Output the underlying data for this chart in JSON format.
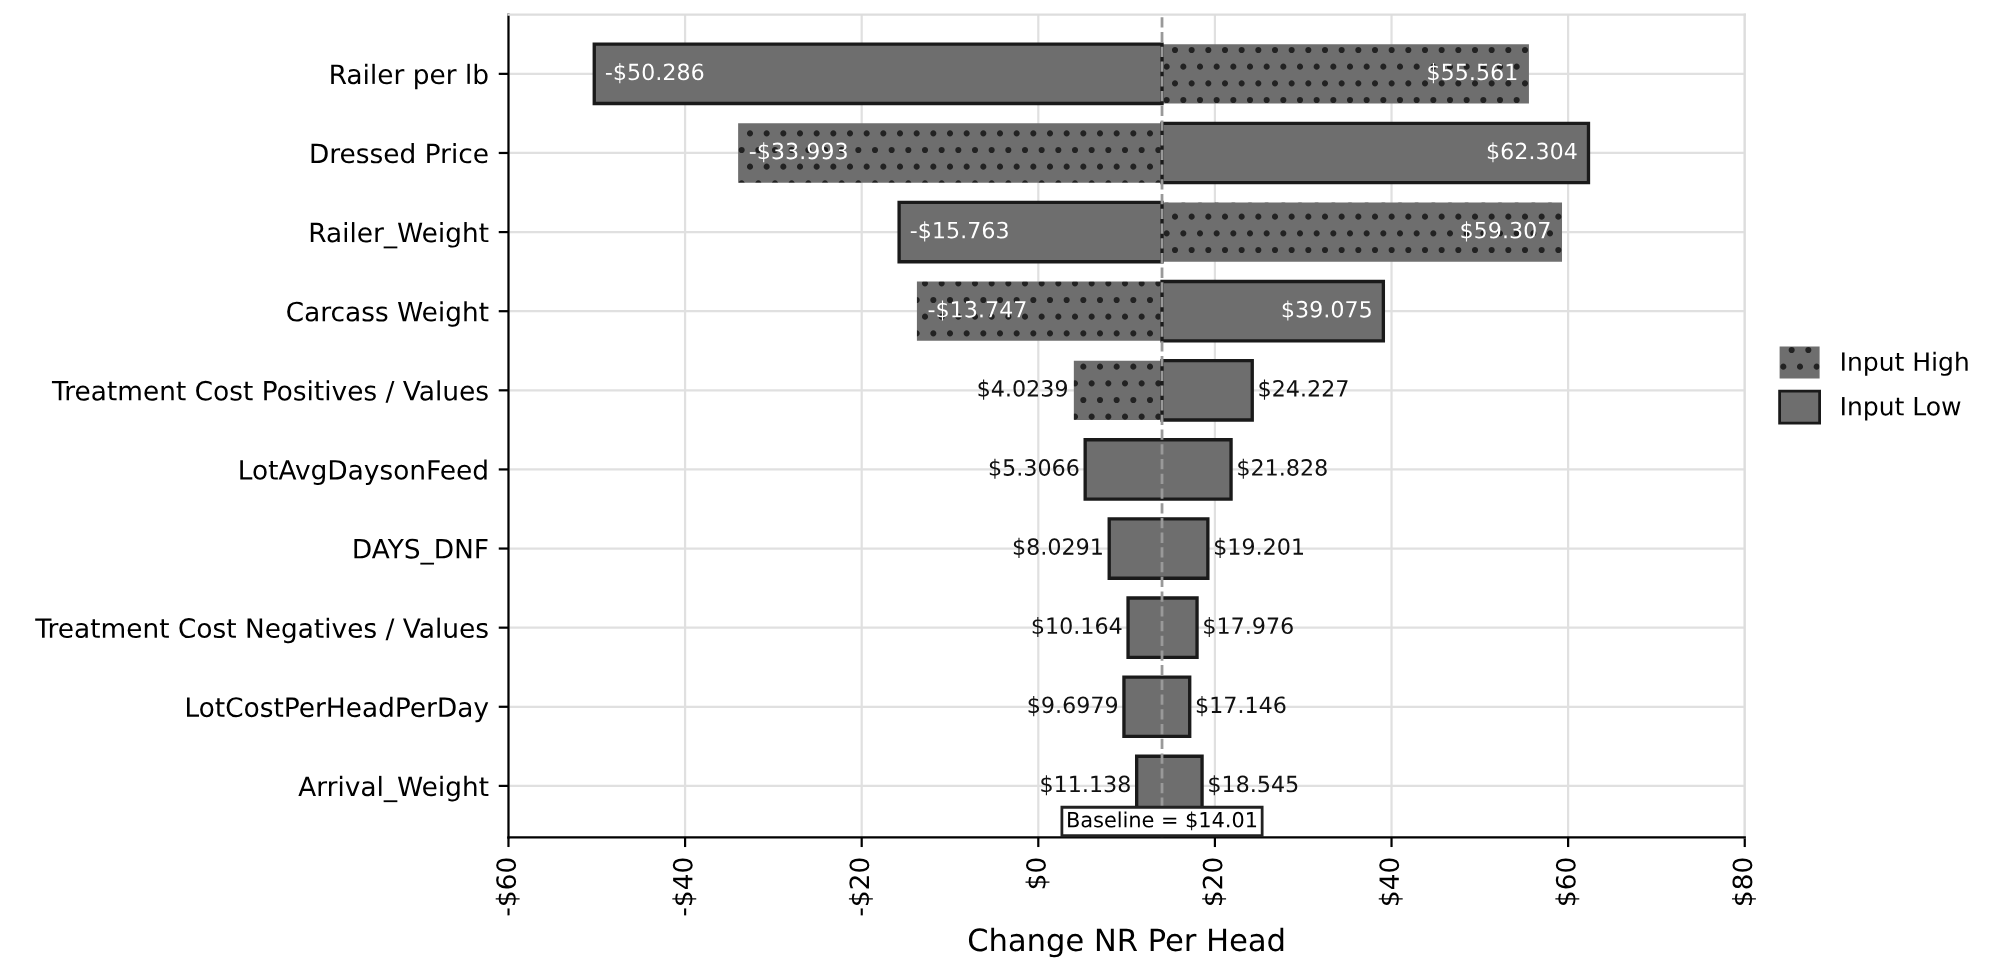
{
  "chart_data": {
    "type": "bar",
    "orientation": "horizontal",
    "xlabel": "Change NR Per Head",
    "categories": [
      "Railer per lb",
      "Dressed Price",
      "Railer_Weight",
      "Carcass Weight",
      "Treatment Cost Positives / Values",
      "LotAvgDaysonFeed",
      "DAYS_DNF",
      "Treatment Cost Negatives / Values",
      "LotCostPerHeadPerDay",
      "Arrival_Weight"
    ],
    "series": [
      {
        "name": "Input High",
        "color": "#6e6e6e",
        "base": [
          14.01,
          14.01,
          14.01,
          14.01,
          14.01,
          null,
          null,
          null,
          null,
          null
        ],
        "values": [
          41.551,
          -48.003,
          45.297,
          -27.757,
          -9.9861,
          null,
          null,
          null,
          null,
          null
        ]
      },
      {
        "name": "Input Low",
        "color": "#6e6e6e",
        "base": [
          14.01,
          14.01,
          14.01,
          14.01,
          14.01,
          5.3066,
          8.0291,
          10.164,
          9.6979,
          11.138
        ],
        "values": [
          -64.296,
          48.294,
          -29.773,
          25.065,
          10.217,
          16.5214,
          11.1719,
          7.812,
          7.4481,
          7.407
        ]
      }
    ],
    "annotations": [
      {
        "text": "-$50.286",
        "x": -50.286,
        "y": "Railer per lb"
      },
      {
        "text": "$55.561",
        "x": 55.561,
        "y": "Railer per lb"
      },
      {
        "text": "-$33.993",
        "x": -33.993,
        "y": "Dressed Price"
      },
      {
        "text": "$62.304",
        "x": 62.304,
        "y": "Dressed Price"
      },
      {
        "text": "-$15.763",
        "x": -15.763,
        "y": "Railer_Weight"
      },
      {
        "text": "$59.307",
        "x": 59.307,
        "y": "Railer_Weight"
      },
      {
        "text": "-$13.747",
        "x": -13.747,
        "y": "Carcass Weight"
      },
      {
        "text": "$39.075",
        "x": 39.075,
        "y": "Carcass Weight"
      },
      {
        "text": "$4.0239",
        "x": 4.0239,
        "y": "Treatment Cost Positives / Values"
      },
      {
        "text": "$24.227",
        "x": 24.227,
        "y": "Treatment Cost Positives / Values"
      },
      {
        "text": "$5.3066",
        "x": 5.3066,
        "y": "LotAvgDaysonFeed"
      },
      {
        "text": "$21.828",
        "x": 21.828,
        "y": "LotAvgDaysonFeed"
      },
      {
        "text": "$8.0291",
        "x": 8.0291,
        "y": "DAYS_DNF"
      },
      {
        "text": "$19.201",
        "x": 19.201,
        "y": "DAYS_DNF"
      },
      {
        "text": "$10.164",
        "x": 10.164,
        "y": "Treatment Cost Negatives / Values"
      },
      {
        "text": "$17.976",
        "x": 17.976,
        "y": "Treatment Cost Negatives / Values"
      },
      {
        "text": "$9.6979",
        "x": 9.6979,
        "y": "LotCostPerHeadPerDay"
      },
      {
        "text": "$17.146",
        "x": 17.146,
        "y": "LotCostPerHeadPerDay"
      },
      {
        "text": "$11.138",
        "x": 11.138,
        "y": "Arrival_Weight"
      },
      {
        "text": "$18.545",
        "x": 18.545,
        "y": "Arrival_Weight"
      }
    ],
    "ref_lines": [
      {
        "axis": "x",
        "value": 14.01,
        "label": "Baseline = $14.01",
        "color": "#999999",
        "line_style": "dashed"
      }
    ],
    "xlim": [
      -60,
      80
    ],
    "xticks": [
      {
        "value": -60,
        "label": "-$60"
      },
      {
        "value": -40,
        "label": "-$40"
      },
      {
        "value": -20,
        "label": "-$20"
      },
      {
        "value": 0,
        "label": "$0"
      },
      {
        "value": 20,
        "label": "$20"
      },
      {
        "value": 40,
        "label": "$40"
      },
      {
        "value": 60,
        "label": "$60"
      },
      {
        "value": 80,
        "label": "$80"
      }
    ],
    "grid": true,
    "legend": "right"
  }
}
